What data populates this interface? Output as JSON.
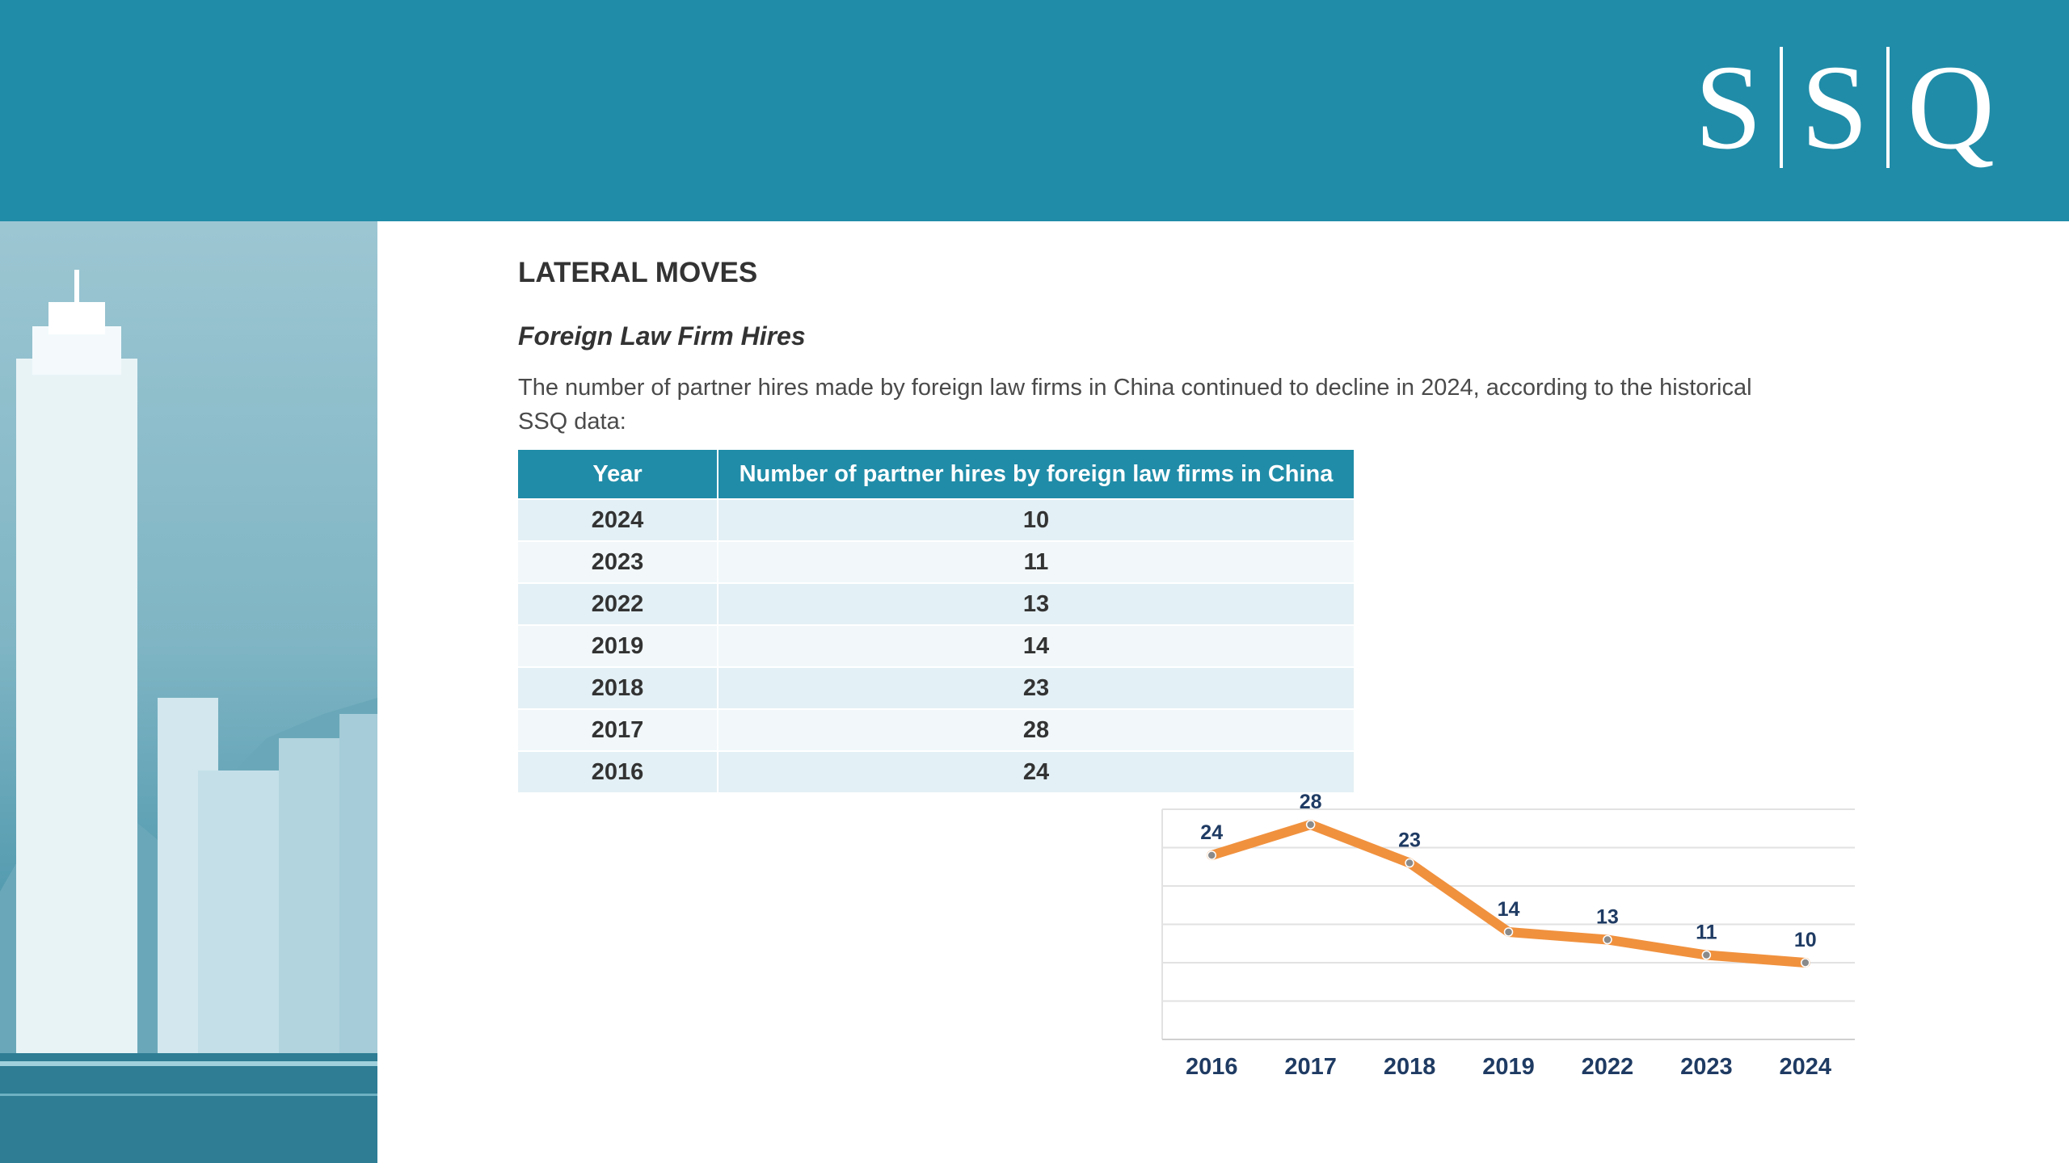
{
  "header": {
    "logo_text": [
      "S",
      "S",
      "Q"
    ]
  },
  "section": {
    "title": "LATERAL MOVES",
    "subtitle": "Foreign Law Firm Hires",
    "paragraph": "The number of partner hires made by foreign law firms in China continued to decline in 2024, according to the historical SSQ data:"
  },
  "table": {
    "headers": [
      "Year",
      "Number of partner hires by foreign law firms in China"
    ],
    "rows": [
      [
        "2024",
        "10"
      ],
      [
        "2023",
        "11"
      ],
      [
        "2022",
        "13"
      ],
      [
        "2019",
        "14"
      ],
      [
        "2018",
        "23"
      ],
      [
        "2017",
        "28"
      ],
      [
        "2016",
        "24"
      ]
    ]
  },
  "chart_data": {
    "type": "line",
    "categories": [
      "2016",
      "2017",
      "2018",
      "2019",
      "2022",
      "2023",
      "2024"
    ],
    "series": [
      {
        "values": [
          24,
          28,
          23,
          14,
          13,
          11,
          10
        ]
      }
    ],
    "title": "",
    "xlabel": "",
    "ylabel": "",
    "ylim": [
      0,
      30
    ],
    "grid": true,
    "line_color": "#f0913e",
    "label_color": "#1f3b63"
  },
  "colors": {
    "brand": "#208ca8",
    "text": "#333333"
  }
}
